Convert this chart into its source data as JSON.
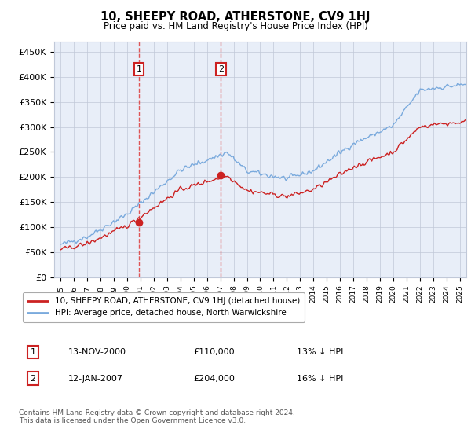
{
  "title": "10, SHEEPY ROAD, ATHERSTONE, CV9 1HJ",
  "subtitle": "Price paid vs. HM Land Registry's House Price Index (HPI)",
  "ylabel_ticks": [
    "£0",
    "£50K",
    "£100K",
    "£150K",
    "£200K",
    "£250K",
    "£300K",
    "£350K",
    "£400K",
    "£450K"
  ],
  "ytick_values": [
    0,
    50000,
    100000,
    150000,
    200000,
    250000,
    300000,
    350000,
    400000,
    450000
  ],
  "ylim": [
    0,
    470000
  ],
  "xlim_start": 1994.5,
  "xlim_end": 2025.5,
  "hpi_color": "#7aaadd",
  "price_color": "#cc2222",
  "dashed_color": "#dd4444",
  "annotation_box_color": "#cc2222",
  "background_color": "#e8eef8",
  "grid_color": "#c0c8d8",
  "legend_label_price": "10, SHEEPY ROAD, ATHERSTONE, CV9 1HJ (detached house)",
  "legend_label_hpi": "HPI: Average price, detached house, North Warwickshire",
  "sale1_date": 2000.87,
  "sale1_price": 110000,
  "sale2_date": 2007.04,
  "sale2_price": 204000,
  "footnote": "Contains HM Land Registry data © Crown copyright and database right 2024.\nThis data is licensed under the Open Government Licence v3.0.",
  "table_entries": [
    {
      "num": "1",
      "date": "13-NOV-2000",
      "price": "£110,000",
      "hpi": "13% ↓ HPI"
    },
    {
      "num": "2",
      "date": "12-JAN-2007",
      "price": "£204,000",
      "hpi": "16% ↓ HPI"
    }
  ]
}
